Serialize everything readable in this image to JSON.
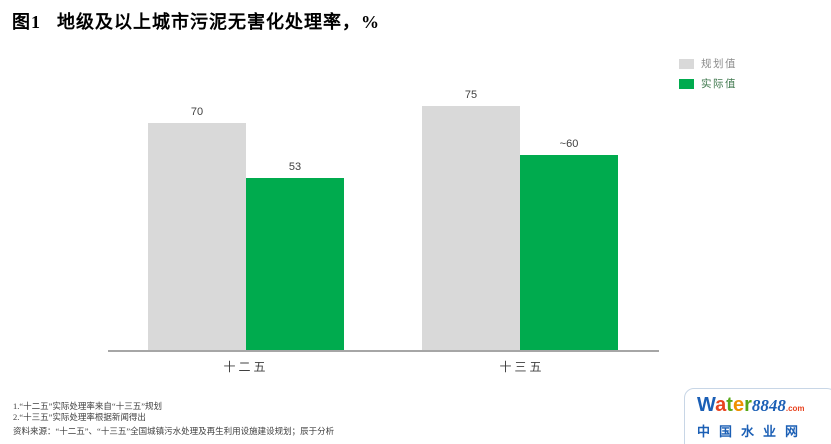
{
  "title": {
    "figure_label": "图1",
    "text": "地级及以上城市污泥无害化处理率，%"
  },
  "chart_data": {
    "type": "bar",
    "title": "地级及以上城市污泥无害化处理率，%",
    "unit": "%",
    "categories": [
      "十二五",
      "十三五"
    ],
    "series": [
      {
        "name": "规划值",
        "color": "#d9d9d9",
        "values": [
          70,
          75
        ],
        "labels": [
          "70",
          "75"
        ]
      },
      {
        "name": "实际值",
        "color": "#00ab4e",
        "values": [
          53,
          60
        ],
        "labels": [
          "53",
          "~60"
        ]
      }
    ],
    "ylim": [
      0,
      78.5
    ],
    "grid": false,
    "legend_position": "top-right",
    "axis_color": "#a6a6a6"
  },
  "legend": {
    "items": [
      {
        "label": "规划值",
        "color": "#d9d9d9"
      },
      {
        "label": "实际值",
        "color": "#00ab4e"
      }
    ]
  },
  "footnotes": {
    "line1": "1.“十二五”实际处理率来自“十三五”规划",
    "line2": "2.“十三五”实际处理率根据新闻得出",
    "source": "资料来源：“十二五”、“十三五”全国城镇污水处理及再生利用设施建设规划；辰于分析"
  },
  "logo": {
    "letters": [
      {
        "char": "W",
        "color": "#1b5fb5"
      },
      {
        "char": "a",
        "color": "#e8431f"
      },
      {
        "char": "t",
        "color": "#58a818"
      },
      {
        "char": "e",
        "color": "#f09000"
      },
      {
        "char": "r",
        "color": "#58a818"
      }
    ],
    "number": "8848",
    "number_color": "#1b5fb5",
    "dotcom": ".com",
    "dotcom_color": "#e8431f",
    "subtitle": "中国水业网",
    "subtitle_color": "#1b5fb5"
  }
}
